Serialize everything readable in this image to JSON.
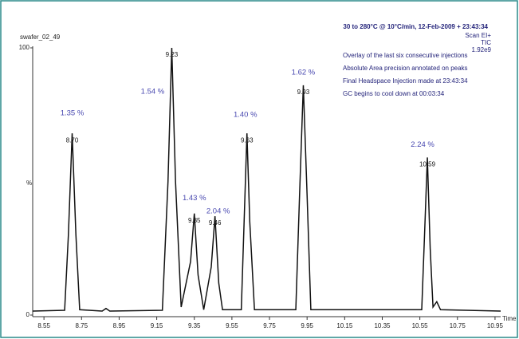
{
  "chart_data": {
    "type": "line",
    "sample": "swafer_02_49",
    "method": "30 to 280°C @ 10°C/min,  12-Feb-2009 + 23:43:34",
    "detector": [
      "Scan EI+",
      "TIC",
      "1.92e9"
    ],
    "notes": [
      "Overlay of the last six consecutive injections",
      "Absolute Area precision annotated on peaks",
      "Final Headspace Injection made at 23:43:34",
      "GC begins to cool down at 00:03:34"
    ],
    "y_label": "%",
    "x_label": "Time",
    "x": [
      8.49,
      8.66,
      8.68,
      8.7,
      8.72,
      8.74,
      8.86,
      8.88,
      8.9,
      9.18,
      9.21,
      9.23,
      9.25,
      9.28,
      9.33,
      9.35,
      9.37,
      9.4,
      9.44,
      9.46,
      9.48,
      9.5,
      9.6,
      9.615,
      9.63,
      9.645,
      9.67,
      9.89,
      9.91,
      9.93,
      9.95,
      9.97,
      10.56,
      10.575,
      10.59,
      10.605,
      10.62,
      10.64,
      10.66,
      10.98
    ],
    "series": [
      {
        "color": "#111111",
        "values": [
          1.5,
          1.8,
          30,
          68,
          30,
          2,
          1.5,
          2.5,
          1.5,
          1.8,
          50,
          100,
          50,
          3,
          20,
          38,
          15,
          2,
          18,
          37,
          12,
          2,
          2,
          35,
          68,
          35,
          2,
          2,
          45,
          86,
          45,
          2,
          2,
          30,
          59,
          25,
          3,
          5,
          2,
          1.5
        ]
      }
    ],
    "annotations": [
      {
        "x": 8.7,
        "text": "8.70",
        "precision": "1.35 %"
      },
      {
        "x": 9.23,
        "text": "9.23",
        "precision": "1.54 %"
      },
      {
        "x": 9.35,
        "text": "9.35",
        "precision": "1.43 %"
      },
      {
        "x": 9.46,
        "text": "9.46",
        "precision": "2.04 %"
      },
      {
        "x": 9.63,
        "text": "9.63",
        "precision": "1.40 %"
      },
      {
        "x": 9.93,
        "text": "9.93",
        "precision": "1.62 %"
      },
      {
        "x": 10.59,
        "text": "10.59",
        "precision": "2.24 %"
      }
    ],
    "xlim": [
      8.49,
      10.98
    ],
    "ylim": [
      0,
      100
    ],
    "xticks": [
      8.55,
      8.75,
      8.95,
      9.15,
      9.35,
      9.55,
      9.75,
      9.95,
      10.15,
      10.35,
      10.55,
      10.75,
      10.95
    ],
    "yticks": [
      0,
      100
    ]
  }
}
